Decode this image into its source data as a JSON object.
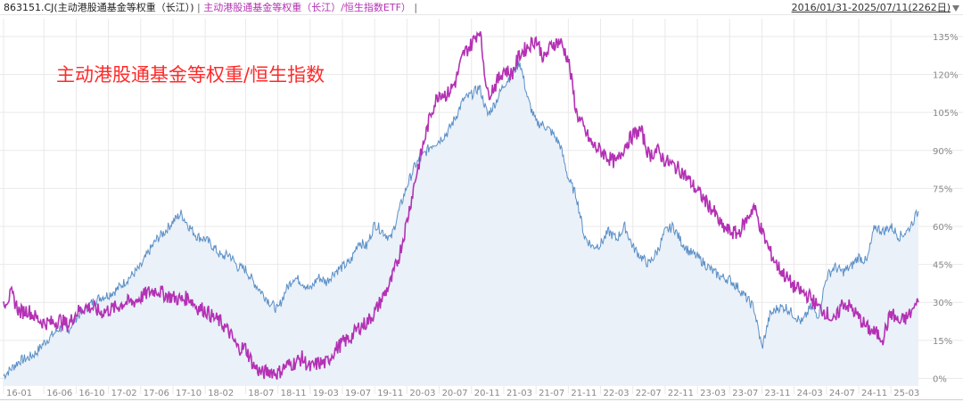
{
  "header": {
    "series_a_label": "863151.CJ(主动港股通基金等权重（长江）)",
    "separator": " | ",
    "series_b_label": "主动港股通基金等权重（长江）/恒生指数ETF）",
    "separator_end": " |",
    "date_range": "2016/01/31-2025/07/11(2262日)",
    "dropdown_icon": "caret-down-icon"
  },
  "overlay_title": "主动港股通基金等权重/恒生指数",
  "colors": {
    "series_a": "#5b8fc6",
    "series_a_fill": "#eaf1f9",
    "series_b": "#b431b4",
    "grid": "#e9e9e9",
    "axis_text": "#888888",
    "title": "#ff2a2a"
  },
  "chart_data": {
    "type": "line",
    "ylim": [
      -3,
      142
    ],
    "y_ticks": [
      0,
      15,
      30,
      45,
      60,
      75,
      90,
      105,
      120,
      135
    ],
    "y_tick_labels": [
      "0%",
      "15%",
      "30%",
      "45%",
      "60%",
      "75%",
      "90%",
      "105%",
      "120%",
      "135%"
    ],
    "x_tick_labels": [
      "16-01",
      "16-06",
      "16-10",
      "17-02",
      "17-06",
      "17-10",
      "18-02",
      "18-07",
      "18-11",
      "19-03",
      "19-07",
      "19-11",
      "20-03",
      "20-07",
      "20-11",
      "21-03",
      "21-07",
      "21-11",
      "22-03",
      "22-07",
      "22-11",
      "23-03",
      "23-07",
      "23-11",
      "24-03",
      "24-07",
      "24-11",
      "25-03"
    ],
    "x_ticks": [
      0,
      5,
      9,
      13,
      17,
      21,
      25,
      30,
      34,
      38,
      42,
      46,
      50,
      54,
      58,
      62,
      66,
      70,
      74,
      78,
      82,
      86,
      90,
      94,
      98,
      102,
      106,
      110
    ],
    "x_range": [
      0,
      113.4
    ],
    "series": [
      {
        "name": "863151.CJ(主动港股通基金等权重（长江）)",
        "x": [
          0,
          1,
          2,
          3,
          4,
          5,
          6,
          7,
          8,
          9,
          10,
          11,
          12,
          13,
          14,
          15,
          16,
          17,
          18,
          19,
          20,
          21,
          22,
          23,
          24,
          25,
          26,
          27,
          28,
          29,
          30,
          31,
          32,
          33,
          34,
          35,
          36,
          37,
          38,
          39,
          40,
          41,
          42,
          43,
          44,
          45,
          46,
          47,
          48,
          49,
          50,
          51,
          52,
          53,
          54,
          55,
          56,
          57,
          58,
          59,
          60,
          61,
          62,
          63,
          64,
          65,
          66,
          67,
          68,
          69,
          70,
          71,
          72,
          73,
          74,
          75,
          76,
          77,
          78,
          79,
          80,
          81,
          82,
          83,
          84,
          85,
          86,
          87,
          88,
          89,
          90,
          91,
          92,
          93,
          94,
          95,
          96,
          97,
          98,
          99,
          100,
          101,
          102,
          103,
          104,
          105,
          106,
          107,
          108,
          109,
          110,
          111,
          112,
          113.4
        ],
        "values": [
          1,
          4,
          7,
          8,
          10,
          14,
          17,
          20,
          19,
          24,
          27,
          30,
          32,
          33,
          35,
          38,
          41,
          44,
          50,
          55,
          58,
          62,
          65,
          60,
          56,
          55,
          52,
          48,
          49,
          44,
          43,
          38,
          34,
          30,
          27,
          35,
          40,
          38,
          35,
          40,
          38,
          42,
          44,
          46,
          54,
          52,
          61,
          58,
          55,
          66,
          76,
          84,
          88,
          92,
          94,
          97,
          103,
          110,
          112,
          115,
          104,
          109,
          116,
          120,
          125,
          110,
          101,
          100,
          97,
          92,
          79,
          72,
          56,
          52,
          53,
          58,
          55,
          60,
          52,
          48,
          45,
          50,
          58,
          60,
          54,
          50,
          48,
          45,
          42,
          40,
          39,
          36,
          32,
          28,
          12,
          25,
          28,
          28,
          25,
          22,
          28,
          25,
          40,
          44,
          42,
          44,
          48,
          46,
          60,
          58,
          60,
          56,
          58,
          66
        ]
      },
      {
        "name": "主动港股通基金等权重（长江）/恒生指数ETF）",
        "x": [
          0,
          1,
          2,
          3,
          4,
          5,
          6,
          7,
          8,
          9,
          10,
          11,
          12,
          13,
          14,
          15,
          16,
          17,
          18,
          19,
          20,
          21,
          22,
          23,
          24,
          25,
          26,
          27,
          28,
          29,
          30,
          31,
          32,
          33,
          34,
          35,
          36,
          37,
          38,
          39,
          40,
          41,
          42,
          43,
          44,
          45,
          46,
          47,
          48,
          49,
          50,
          51,
          52,
          53,
          54,
          55,
          56,
          57,
          58,
          59,
          60,
          61,
          62,
          63,
          64,
          65,
          66,
          67,
          68,
          69,
          70,
          71,
          72,
          73,
          74,
          75,
          76,
          77,
          78,
          79,
          80,
          81,
          82,
          83,
          84,
          85,
          86,
          87,
          88,
          89,
          90,
          91,
          92,
          93,
          94,
          95,
          96,
          97,
          98,
          99,
          100,
          101,
          102,
          103,
          104,
          105,
          106,
          107,
          108,
          109,
          110,
          111,
          112,
          113.4
        ],
        "values": [
          30,
          33,
          26,
          27,
          24,
          22,
          22,
          23,
          21,
          26,
          28,
          28,
          26,
          27,
          28,
          30,
          30,
          32,
          34,
          35,
          33,
          32,
          31,
          32,
          28,
          27,
          24,
          22,
          18,
          12,
          12,
          5,
          2,
          3,
          2,
          5,
          6,
          8,
          4,
          6,
          6,
          11,
          14,
          16,
          20,
          22,
          26,
          32,
          38,
          48,
          62,
          78,
          92,
          105,
          113,
          112,
          117,
          128,
          132,
          138,
          112,
          116,
          122,
          120,
          128,
          131,
          134,
          126,
          132,
          133,
          126,
          105,
          98,
          92,
          90,
          87,
          85,
          92,
          96,
          98,
          88,
          90,
          86,
          84,
          82,
          78,
          74,
          70,
          66,
          60,
          58,
          57,
          62,
          68,
          58,
          50,
          44,
          40,
          36,
          34,
          32,
          28,
          26,
          22,
          30,
          28,
          24,
          20,
          18,
          16,
          26,
          22,
          24,
          30
        ]
      }
    ]
  }
}
